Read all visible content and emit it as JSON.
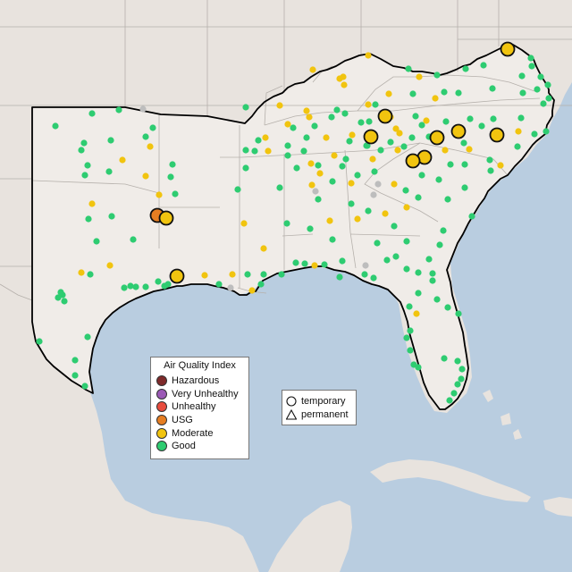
{
  "aqi_legend": {
    "title": "Air Quality Index",
    "categories": [
      {
        "label": "Hazardous",
        "color": "#7e2a2a"
      },
      {
        "label": "Very Unhealthy",
        "color": "#9b59b6"
      },
      {
        "label": "Unhealthy",
        "color": "#e84c3d"
      },
      {
        "label": "USG",
        "color": "#e67e22"
      },
      {
        "label": "Moderate",
        "color": "#f1c40f"
      },
      {
        "label": "Good",
        "color": "#2ecc71"
      }
    ]
  },
  "monitor_legend": {
    "temporary": "temporary",
    "permanent": "permanent"
  },
  "colors": {
    "ocean": "#b9cde0",
    "land": "#e8e3de",
    "region_land": "#f0ece8",
    "no_data": "#bdbdbd"
  }
}
